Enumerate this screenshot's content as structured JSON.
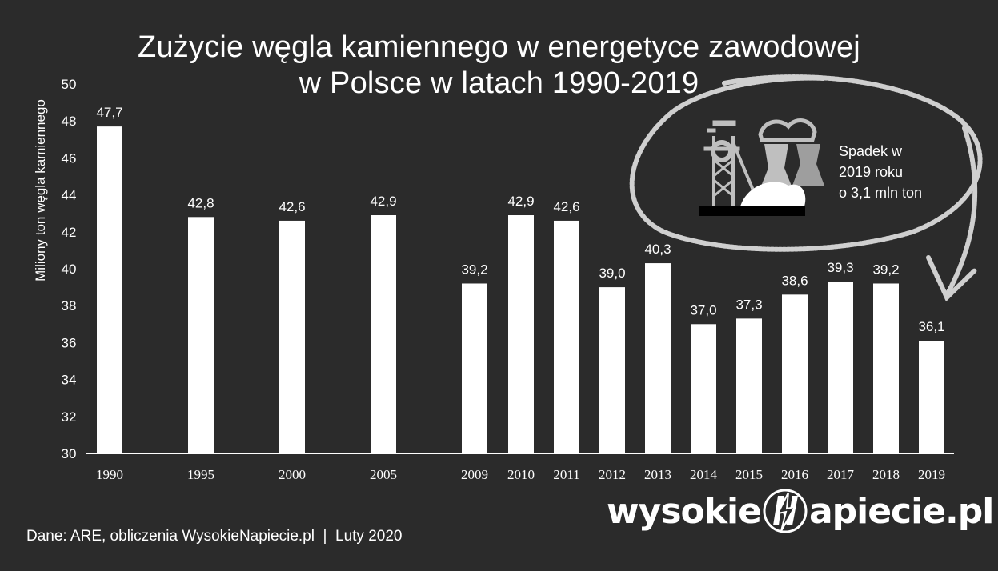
{
  "title": {
    "line1": "Zużycie węgla kamiennego w energetyce zawodowej",
    "line2": "w Polsce w latach 1990-2019"
  },
  "chart_data": {
    "type": "bar",
    "title": "Zużycie węgla kamiennego w energetyce zawodowej w Polsce w latach 1990-2019",
    "ylabel": "Miliony ton węgla kamiennego",
    "xlabel": "",
    "ylim": [
      30,
      50
    ],
    "yticks": [
      30,
      32,
      34,
      36,
      38,
      40,
      42,
      44,
      46,
      48,
      50
    ],
    "grid": false,
    "categories": [
      "1990",
      "1995",
      "2000",
      "2005",
      "2009",
      "2010",
      "2011",
      "2012",
      "2013",
      "2014",
      "2015",
      "2016",
      "2017",
      "2018",
      "2019"
    ],
    "values": [
      47.7,
      42.8,
      42.6,
      42.9,
      39.2,
      42.9,
      42.6,
      39.0,
      40.3,
      37.0,
      37.3,
      38.6,
      39.3,
      39.2,
      36.1
    ],
    "value_labels": [
      "47,7",
      "42,8",
      "42,6",
      "42,9",
      "39,2",
      "42,9",
      "42,6",
      "39,0",
      "40,3",
      "37,0",
      "37,3",
      "38,6",
      "39,3",
      "39,2",
      "36,1"
    ],
    "bar_color": "#ffffff"
  },
  "callout": {
    "line1": "Spadek w",
    "line2": "2019 roku",
    "line3": "o 3,1 mln ton"
  },
  "source": "Dane: ARE, obliczenia WysokieNapiecie.pl  |  Luty 2020",
  "brand": {
    "part1": "wysokie",
    "part2": "apiecie.pl"
  },
  "colors": {
    "background": "#2b2b2b",
    "foreground": "#ffffff",
    "illustration": "#bfbfbf"
  },
  "icons": [
    "coal-mine-shaft-icon",
    "power-plant-cooling-towers-icon",
    "lightning-n-logo-icon"
  ]
}
